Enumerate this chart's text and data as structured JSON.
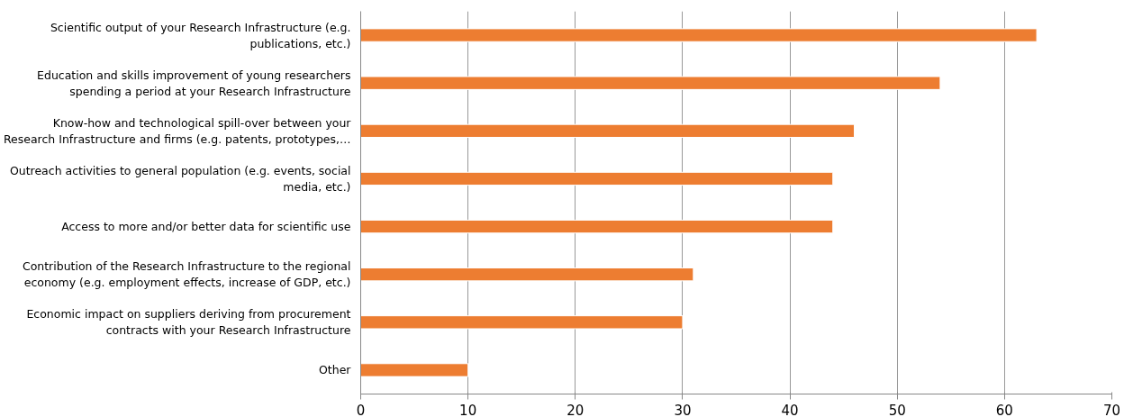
{
  "chart_data": {
    "type": "bar",
    "orientation": "horizontal",
    "categories": [
      "Scientific output of your Research Infrastructure (e.g.\npublications, etc.)",
      "Education and skills improvement of young researchers\nspending a period at your Research Infrastructure",
      "Know-how and technological spill-over between your\nResearch Infrastructure and firms (e.g. patents, prototypes,…",
      "Outreach activities to general population (e.g. events, social\nmedia, etc.)",
      "Access to more and/or better data for scientific use",
      "Contribution of the Research Infrastructure to the regional\neconomy (e.g. employment effects, increase of GDP, etc.)",
      "Economic impact on suppliers deriving from procurement\ncontracts with your Research Infrastructure",
      "Other"
    ],
    "values": [
      63,
      54,
      46,
      44,
      44,
      31,
      30,
      10
    ],
    "color": "#ed7d31",
    "xlim": [
      0,
      70
    ],
    "xticks": [
      0,
      10,
      20,
      30,
      40,
      50,
      60,
      70
    ],
    "grid": "x"
  }
}
